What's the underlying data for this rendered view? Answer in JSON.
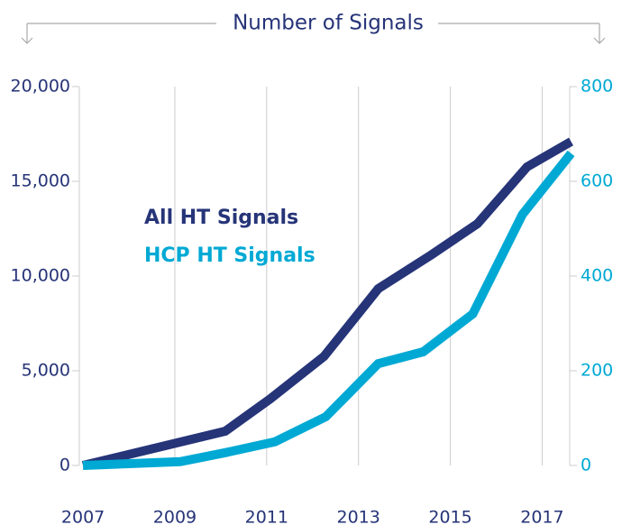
{
  "chart_data": {
    "type": "line",
    "title": "Number of Signals",
    "xlim": [
      2006.92,
      2017.6
    ],
    "xticks": [
      2007,
      2009,
      2011,
      2013,
      2015,
      2017
    ],
    "ylim": [
      0,
      20000
    ],
    "yticks": [
      0,
      {
        "value": 5000,
        "label": "5,000"
      },
      {
        "value": 10000,
        "label": "10,000"
      },
      {
        "value": 15000,
        "label": "15,000"
      },
      {
        "value": 20000,
        "label": "20,000"
      }
    ],
    "y2lim": [
      0,
      800
    ],
    "y2ticks": [
      0,
      200,
      400,
      600,
      800
    ],
    "grid": true,
    "series": [
      {
        "name": "All HT Signals",
        "color": "#263478",
        "x": [
          2007,
          2010.1,
          2011.08,
          2012.25,
          2013.43,
          2014.6,
          2015.59,
          2016.67,
          2017.63
        ],
        "values": [
          0,
          1810,
          3520,
          5760,
          9330,
          11140,
          12760,
          15760,
          17100
        ]
      },
      {
        "name": "HCP HT Signals",
        "color": "#00a9d4",
        "axis": "y2",
        "x": [
          2007,
          2009.12,
          2010.1,
          2011.18,
          2012.29,
          2013.43,
          2014.41,
          2015.49,
          2016.57,
          2017.63
        ],
        "values": [
          0,
          8,
          27,
          50,
          103,
          215,
          240,
          320,
          530,
          659
        ]
      }
    ]
  }
}
